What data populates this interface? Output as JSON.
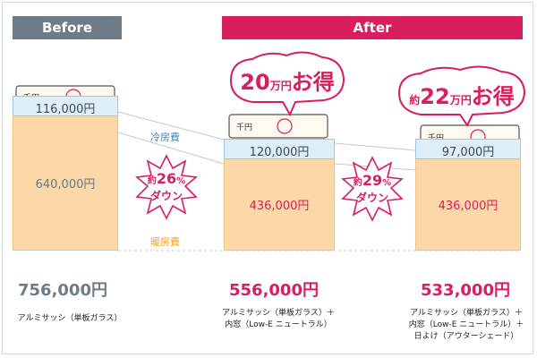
{
  "headers": {
    "before": "Before",
    "after": "After"
  },
  "labels": {
    "cooling": "冷房費",
    "heating": "暖房費"
  },
  "savings": [
    {
      "prefix": "",
      "amount": "20",
      "unit": "万円",
      "suffix": "お得"
    },
    {
      "prefix": "約",
      "amount": "22",
      "unit": "万円",
      "suffix": "お得"
    }
  ],
  "reductions": [
    {
      "prefix": "約",
      "pct": "26",
      "unit": "%",
      "text": "ダウン"
    },
    {
      "prefix": "約",
      "pct": "29",
      "unit": "%",
      "text": "ダウン"
    }
  ],
  "money_icon_text": "千円",
  "chart_data": {
    "type": "bar",
    "stacked": true,
    "categories": [
      "アルミサッシ（単板ガラス）",
      "アルミサッシ（単板ガラス）＋内窓（Low-E ニュートラル）",
      "アルミサッシ（単板ガラス）＋内窓（Low-E ニュートラル）＋日よけ（アウターシェード）"
    ],
    "caption_lines": [
      [
        "アルミサッシ（単板ガラス）"
      ],
      [
        "アルミサッシ（単板ガラス）＋",
        "内窓（Low-E ニュートラル）"
      ],
      [
        "アルミサッシ（単板ガラス）＋",
        "内窓（Low-E ニュートラル）＋",
        "日よけ（アウターシェード）"
      ]
    ],
    "series": [
      {
        "name": "暖房費",
        "values": [
          640000,
          436000,
          436000
        ],
        "labels": [
          "640,000円",
          "436,000円",
          "436,000円"
        ],
        "color": "#fcd8a8"
      },
      {
        "name": "冷房費",
        "values": [
          116000,
          120000,
          97000
        ],
        "labels": [
          "116,000円",
          "120,000円",
          "97,000円"
        ],
        "color": "#ddeef8"
      }
    ],
    "totals": [
      756000,
      556000,
      533000
    ],
    "total_labels": [
      "756,000円",
      "556,000円",
      "533,000円"
    ]
  }
}
